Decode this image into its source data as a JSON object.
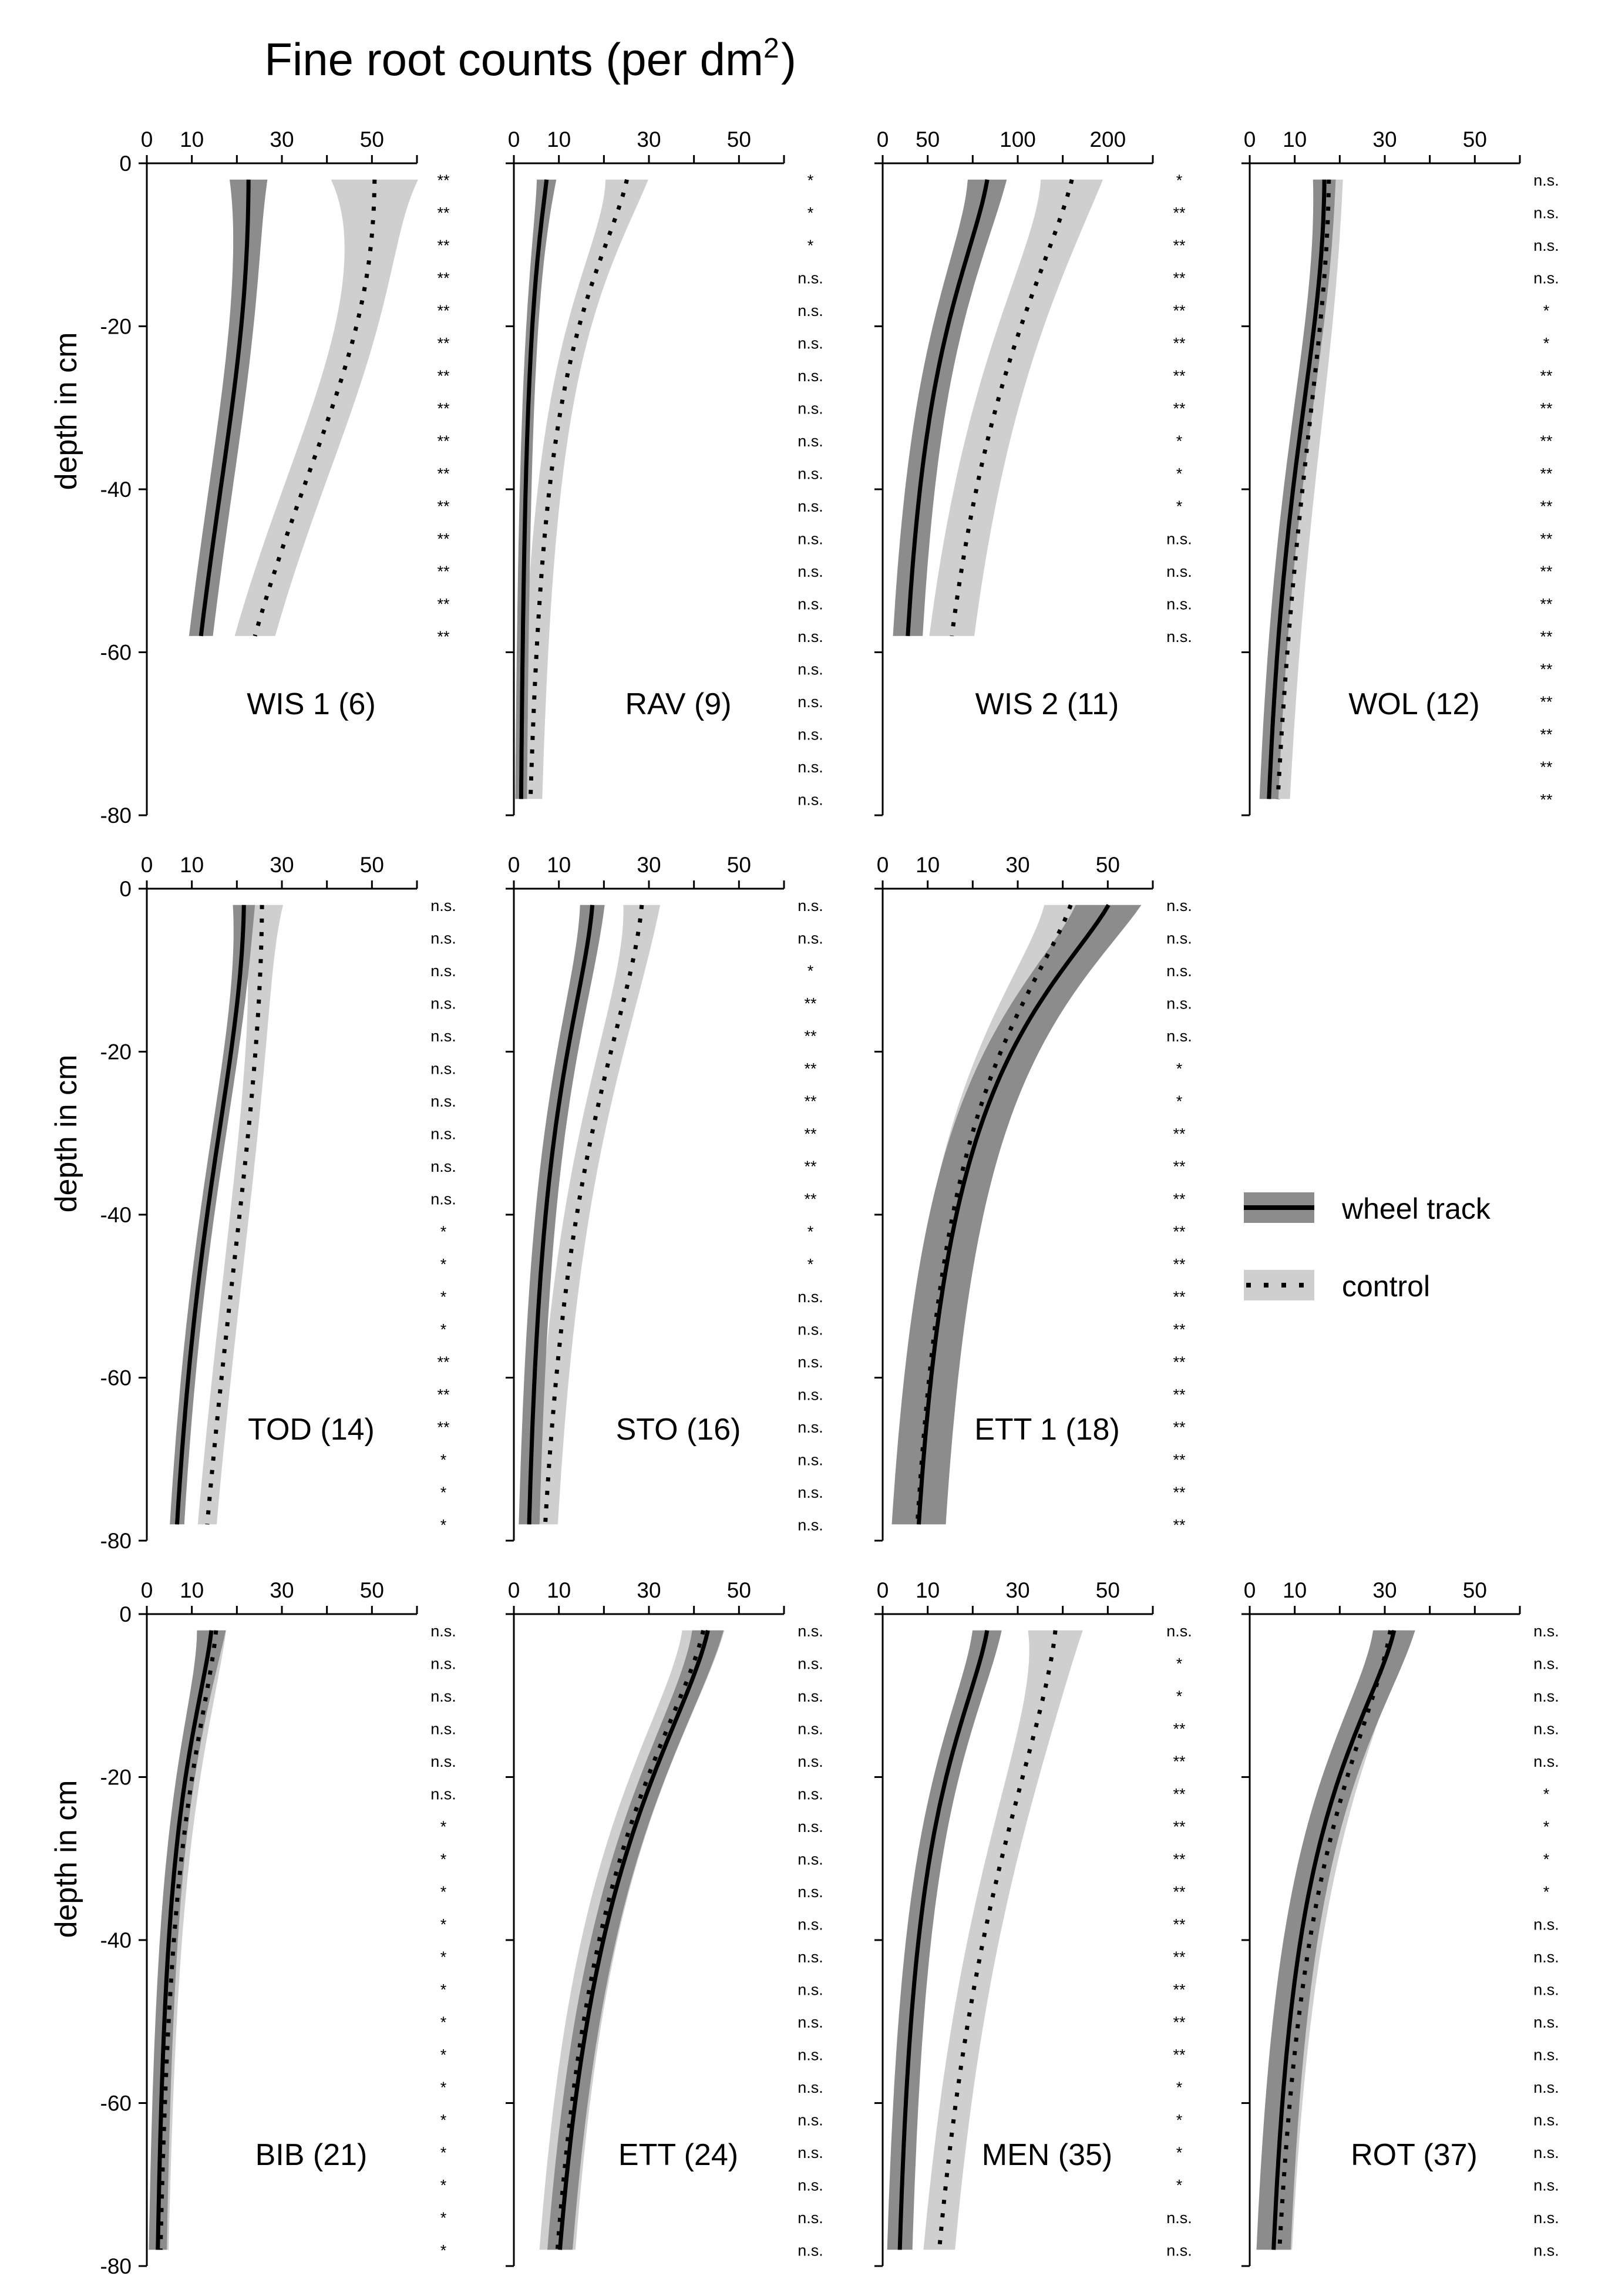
{
  "title": "Fine root counts (per dm",
  "title_superscript": "2",
  "title_close": ")",
  "ylabel": "depth in cm",
  "legend": [
    {
      "label": "wheel track",
      "style": "solid",
      "band_color": "#8c8c8c"
    },
    {
      "label": "control",
      "style": "dotted",
      "band_color": "#cfcfcf"
    }
  ],
  "colors": {
    "wheel_band": "#8c8c8c",
    "control_band": "#cfcfcf",
    "line": "#000000"
  },
  "chart_data": [
    {
      "type": "line",
      "panel": "WIS 1 (6)",
      "xlim": [
        0,
        60
      ],
      "xticks": [
        0,
        10,
        30,
        50
      ],
      "ylim": [
        -80,
        0
      ],
      "yticks": [
        0,
        -20,
        -40,
        -60,
        -80
      ],
      "show_yticks": true,
      "depth_max": 58,
      "wheel": {
        "s": 22,
        "m": 60,
        "n": 2.3,
        "w": 2.65,
        "cap": 18
      },
      "control": {
        "s": 50,
        "m": 55,
        "n": 2.4,
        "w": 4.5,
        "cap": 60
      },
      "sig": [
        "**",
        "**",
        "**",
        "**",
        "**",
        "**",
        "**",
        "**",
        "**",
        "**",
        "**",
        "**",
        "**",
        "**",
        "**"
      ]
    },
    {
      "type": "line",
      "panel": "RAV (9)",
      "xlim": [
        0,
        60
      ],
      "xticks": [
        0,
        10,
        30,
        50
      ],
      "ylim": [
        -80,
        0
      ],
      "yticks": [
        0,
        -20,
        -40,
        -60,
        -80
      ],
      "show_yticks": false,
      "depth_max": 78,
      "wheel": {
        "s": 7,
        "m": 20,
        "n": 1.3,
        "w": 1.3,
        "cap": 10
      },
      "control": {
        "s": 25,
        "m": 23,
        "n": 1.6,
        "w": 2.6,
        "cap": 25
      },
      "sig": [
        "*",
        "*",
        "*",
        "n.s.",
        "n.s.",
        "n.s.",
        "n.s.",
        "n.s.",
        "n.s.",
        "n.s.",
        "n.s.",
        "n.s.",
        "n.s.",
        "n.s.",
        "n.s.",
        "n.s.",
        "n.s.",
        "n.s.",
        "n.s.",
        "n.s."
      ]
    },
    {
      "type": "line",
      "panel": "WIS 2 (11)",
      "xlim": [
        0,
        60
      ],
      "xticks": [
        0,
        10,
        30,
        50
      ],
      "xtick_labels": [
        "0",
        "50",
        "100",
        "200"
      ],
      "ylim": [
        -80,
        0
      ],
      "yticks": [
        0,
        -20,
        -40,
        -60,
        -80
      ],
      "show_yticks": false,
      "depth_max": 58,
      "wheel": {
        "s": 23,
        "m": 26,
        "n": 1.6,
        "w": 3.3,
        "cap": 12
      },
      "control": {
        "s": 42,
        "m": 38,
        "n": 1.45,
        "w": 5.0,
        "cap": 22
      },
      "sig": [
        "*",
        "**",
        "**",
        "**",
        "**",
        "**",
        "**",
        "**",
        "*",
        "*",
        "*",
        "n.s.",
        "n.s.",
        "n.s.",
        "n.s."
      ]
    },
    {
      "type": "line",
      "panel": "WOL (12)",
      "xlim": [
        0,
        60
      ],
      "xticks": [
        0,
        10,
        30,
        50
      ],
      "ylim": [
        -80,
        0
      ],
      "yticks": [
        0,
        -20,
        -40,
        -60,
        -80
      ],
      "show_yticks": false,
      "depth_max": 78,
      "wheel": {
        "s": 16,
        "m": 45,
        "n": 2.2,
        "w": 2.1,
        "cap": 5
      },
      "control": {
        "s": 17,
        "m": 55,
        "n": 2.0,
        "w": 2.7,
        "cap": 5
      },
      "sig": [
        "n.s.",
        "n.s.",
        "n.s.",
        "n.s.",
        "*",
        "*",
        "**",
        "**",
        "**",
        "**",
        "**",
        "**",
        "**",
        "**",
        "**",
        "**",
        "**",
        "**",
        "**",
        "**"
      ]
    },
    {
      "type": "line",
      "panel": "TOD (14)",
      "xlim": [
        0,
        60
      ],
      "xticks": [
        0,
        10,
        30,
        50
      ],
      "ylim": [
        -80,
        0
      ],
      "yticks": [
        0,
        -20,
        -40,
        -60,
        -80
      ],
      "show_yticks": true,
      "depth_max": 78,
      "wheel": {
        "s": 21,
        "m": 50,
        "n": 2.0,
        "w": 1.6,
        "cap": 10
      },
      "control": {
        "s": 25,
        "m": 80,
        "n": 2.0,
        "w": 2.1,
        "cap": 30
      },
      "sig": [
        "n.s.",
        "n.s.",
        "n.s.",
        "n.s.",
        "n.s.",
        "n.s.",
        "n.s.",
        "n.s.",
        "n.s.",
        "n.s.",
        "*",
        "*",
        "*",
        "*",
        "**",
        "**",
        "**",
        "*",
        "*",
        "*"
      ]
    },
    {
      "type": "line",
      "panel": "STO (16)",
      "xlim": [
        0,
        60
      ],
      "xticks": [
        0,
        10,
        30,
        50
      ],
      "ylim": [
        -80,
        0
      ],
      "yticks": [
        0,
        -20,
        -40,
        -60,
        -80
      ],
      "show_yticks": false,
      "depth_max": 78,
      "wheel": {
        "s": 17,
        "m": 30,
        "n": 1.7,
        "w": 2.3,
        "cap": 5
      },
      "control": {
        "s": 28,
        "m": 38,
        "n": 1.7,
        "w": 2.8,
        "cap": 15
      },
      "sig": [
        "n.s.",
        "n.s.",
        "*",
        "**",
        "**",
        "**",
        "**",
        "**",
        "**",
        "**",
        "*",
        "*",
        "n.s.",
        "n.s.",
        "n.s.",
        "n.s.",
        "n.s.",
        "n.s.",
        "n.s.",
        "n.s."
      ]
    },
    {
      "type": "line",
      "panel": "ETT 1 (18)",
      "xlim": [
        0,
        60
      ],
      "xticks": [
        0,
        10,
        30,
        50
      ],
      "ylim": [
        -80,
        0
      ],
      "yticks": [
        0,
        -20,
        -40,
        -60,
        -80
      ],
      "show_yticks": false,
      "depth_max": 78,
      "wheel": {
        "s": 51,
        "m": 23,
        "n": 1.45,
        "w": 6.0,
        "cap": 15
      },
      "control": {
        "s": 42,
        "m": 27,
        "n": 1.5,
        "w": 5.0,
        "cap": 10
      },
      "sig": [
        "n.s.",
        "n.s.",
        "n.s.",
        "n.s.",
        "n.s.",
        "*",
        "*",
        "**",
        "**",
        "**",
        "**",
        "**",
        "**",
        "**",
        "**",
        "**",
        "**",
        "**",
        "**",
        "**"
      ]
    },
    {
      "type": "line",
      "panel": "BIB (21)",
      "xlim": [
        0,
        60
      ],
      "xticks": [
        0,
        10,
        30,
        50
      ],
      "ylim": [
        -80,
        0
      ],
      "yticks": [
        0,
        -20,
        -40,
        -60,
        -80
      ],
      "show_yticks": true,
      "depth_max": 78,
      "wheel": {
        "s": 14,
        "m": 24,
        "n": 1.6,
        "w": 2.0,
        "cap": 14
      },
      "control": {
        "s": 15,
        "m": 28,
        "n": 1.6,
        "w": 1.8,
        "cap": 5
      },
      "sig": [
        "n.s.",
        "n.s.",
        "n.s.",
        "n.s.",
        "n.s.",
        "n.s.",
        "*",
        "*",
        "*",
        "*",
        "*",
        "*",
        "*",
        "*",
        "*",
        "*",
        "*",
        "*",
        "*",
        "*"
      ]
    },
    {
      "type": "line",
      "panel": "ETT  (24)",
      "xlim": [
        0,
        60
      ],
      "xticks": [
        0,
        10,
        30,
        50
      ],
      "ylim": [
        -80,
        0
      ],
      "yticks": [
        0,
        -20,
        -40,
        -60,
        -80
      ],
      "show_yticks": false,
      "depth_max": 78,
      "wheel": {
        "s": 43,
        "m": 35,
        "n": 1.55,
        "w": 2.8,
        "cap": 8
      },
      "control": {
        "s": 42,
        "m": 34,
        "n": 1.55,
        "w": 4.0,
        "cap": 8
      },
      "sig": [
        "n.s.",
        "n.s.",
        "n.s.",
        "n.s.",
        "n.s.",
        "n.s.",
        "n.s.",
        "n.s.",
        "n.s.",
        "n.s.",
        "n.s.",
        "n.s.",
        "n.s.",
        "n.s.",
        "n.s.",
        "n.s.",
        "n.s.",
        "n.s.",
        "n.s.",
        "n.s."
      ]
    },
    {
      "type": "line",
      "panel": "MEN (35)",
      "xlim": [
        0,
        60
      ],
      "xticks": [
        0,
        10,
        30,
        50
      ],
      "ylim": [
        -80,
        0
      ],
      "yticks": [
        0,
        -20,
        -40,
        -60,
        -80
      ],
      "show_yticks": false,
      "depth_max": 78,
      "wheel": {
        "s": 23,
        "m": 25,
        "n": 1.6,
        "w": 2.8,
        "cap": 5
      },
      "control": {
        "s": 38,
        "m": 48,
        "n": 1.6,
        "w": 3.5,
        "cap": 30
      },
      "sig": [
        "n.s.",
        "*",
        "*",
        "**",
        "**",
        "**",
        "**",
        "**",
        "**",
        "**",
        "**",
        "**",
        "**",
        "**",
        "*",
        "*",
        "*",
        "*",
        "n.s.",
        "n.s."
      ]
    },
    {
      "type": "line",
      "panel": "ROT (37)",
      "xlim": [
        0,
        60
      ],
      "xticks": [
        0,
        10,
        30,
        50
      ],
      "ylim": [
        -80,
        0
      ],
      "yticks": [
        0,
        -20,
        -40,
        -60,
        -80
      ],
      "show_yticks": false,
      "depth_max": 78,
      "wheel": {
        "s": 32,
        "m": 26,
        "n": 1.6,
        "w": 3.8,
        "cap": 10
      },
      "control": {
        "s": 31,
        "m": 32,
        "n": 1.6,
        "w": 2.8,
        "cap": 10
      },
      "sig": [
        "n.s.",
        "n.s.",
        "n.s.",
        "n.s.",
        "n.s.",
        "*",
        "*",
        "*",
        "*",
        "n.s.",
        "n.s.",
        "n.s.",
        "n.s.",
        "n.s.",
        "n.s.",
        "n.s.",
        "n.s.",
        "n.s.",
        "n.s.",
        "n.s."
      ]
    }
  ]
}
